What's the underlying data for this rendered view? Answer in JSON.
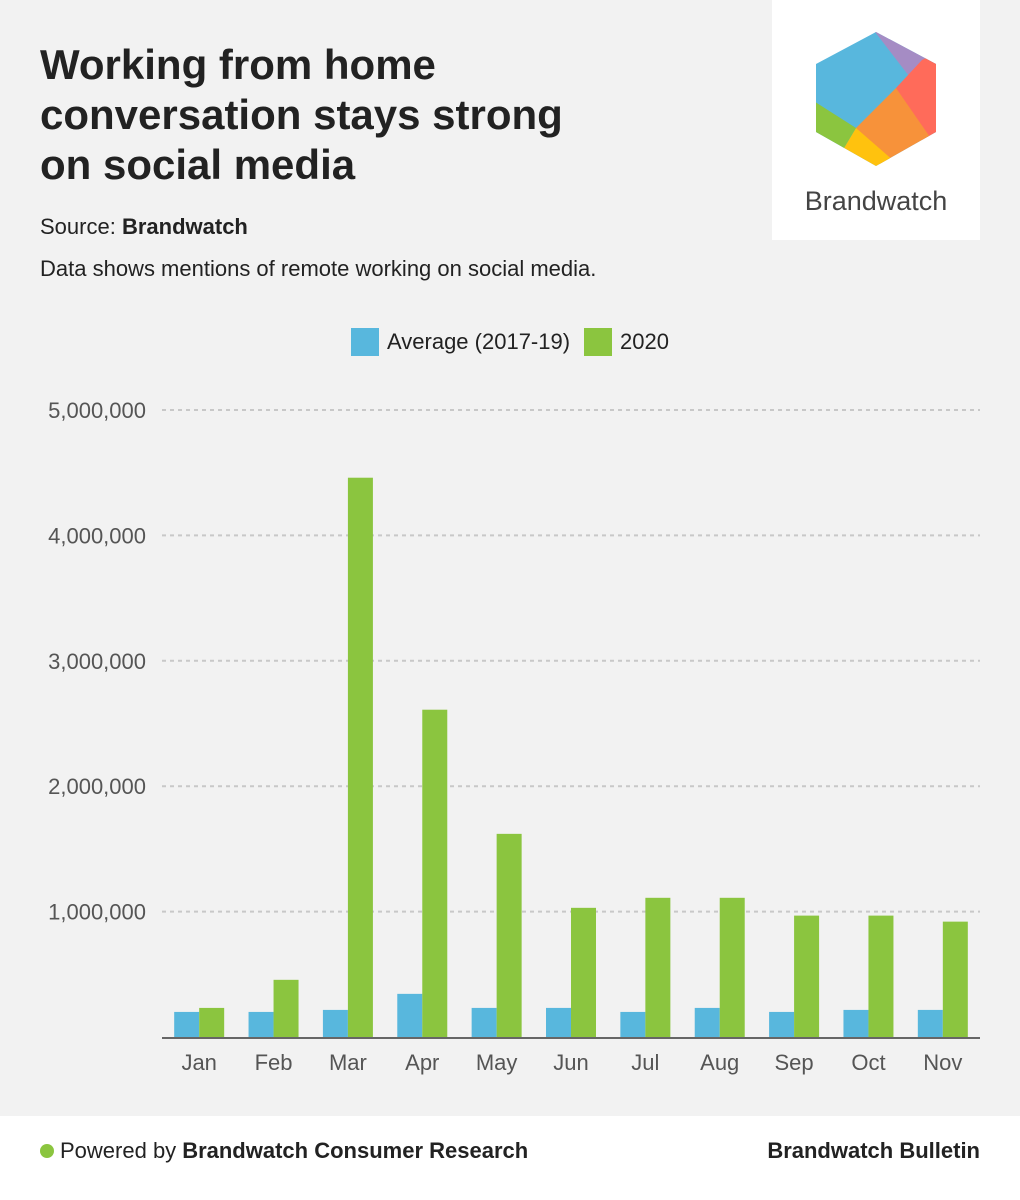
{
  "title": "Working from home conversation stays strong on social media",
  "source_label": "Source:",
  "source_name": "Brandwatch",
  "description": "Data shows mentions of remote working on social media.",
  "logo_text": "Brandwatch",
  "footer": {
    "powered_by": "Powered by",
    "powered_name": "Brandwatch Consumer Research",
    "right": "Brandwatch Bulletin"
  },
  "colors": {
    "average": "#58b7dd",
    "y2020": "#8bc53f"
  },
  "chart_data": {
    "type": "bar",
    "categories": [
      "Jan",
      "Feb",
      "Mar",
      "Apr",
      "May",
      "Jun",
      "Jul",
      "Aug",
      "Sep",
      "Oct",
      "Nov"
    ],
    "series": [
      {
        "name": "Average (2017-19)",
        "values": [
          200000,
          200000,
          216000,
          344000,
          232000,
          232000,
          200000,
          232000,
          200000,
          216000,
          216000
        ]
      },
      {
        "name": "2020",
        "values": [
          232000,
          456000,
          4460000,
          2610000,
          1620000,
          1030000,
          1110000,
          1110000,
          968000,
          968000,
          920000
        ]
      }
    ],
    "ylim": [
      0,
      5000000
    ],
    "yticks": [
      "1,000,000",
      "2,000,000",
      "3,000,000",
      "4,000,000",
      "5,000,000"
    ],
    "ytick_values": [
      1000000,
      2000000,
      3000000,
      4000000,
      5000000
    ],
    "grid": true,
    "legend": "top-center"
  }
}
